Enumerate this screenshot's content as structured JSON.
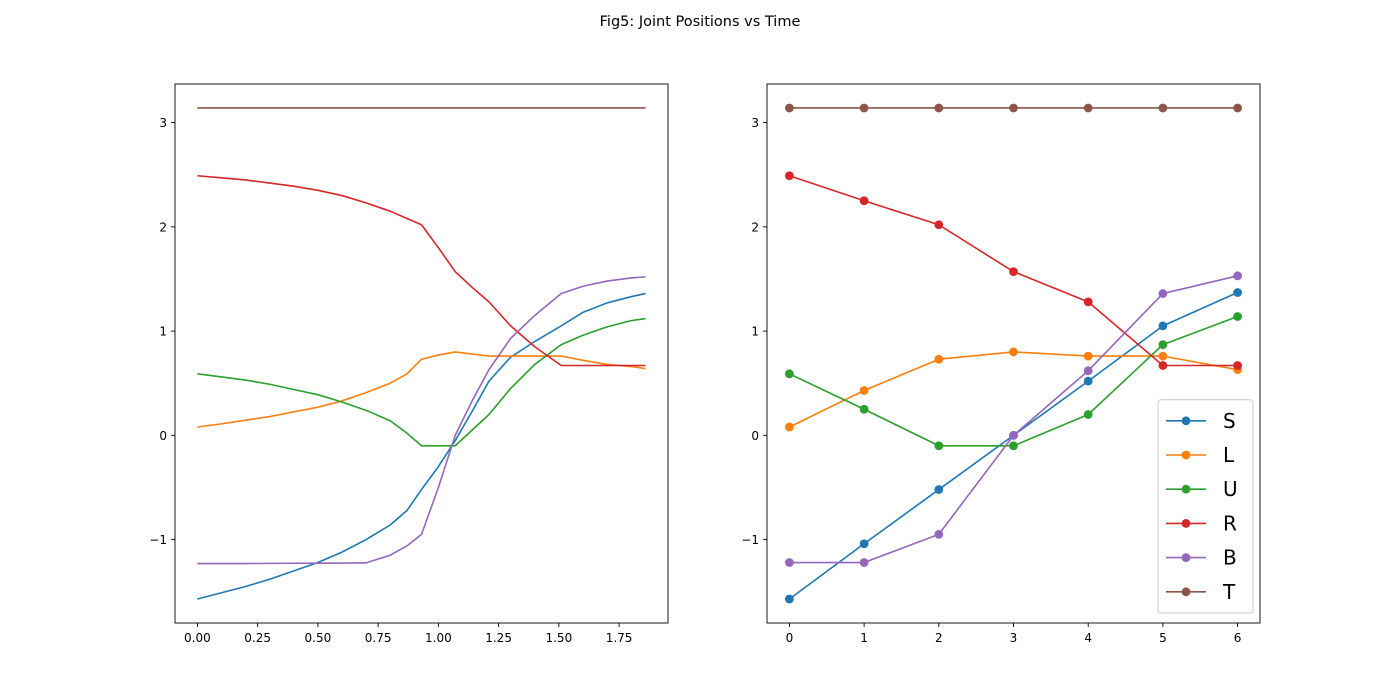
{
  "figure": {
    "title": "Fig5: Joint Positions vs Time"
  },
  "chart_data": [
    {
      "type": "line",
      "title": "",
      "xlabel": "",
      "ylabel": "",
      "xlim": [
        -0.093,
        1.953
      ],
      "ylim": [
        -1.8,
        3.37
      ],
      "xticks": [
        0.0,
        0.25,
        0.5,
        0.75,
        1.0,
        1.25,
        1.5,
        1.75
      ],
      "xtick_labels": [
        "0.00",
        "0.25",
        "0.50",
        "0.75",
        "1.00",
        "1.25",
        "1.50",
        "1.75"
      ],
      "yticks": [
        -1,
        0,
        1,
        2,
        3
      ],
      "ytick_labels": [
        "−1",
        "0",
        "1",
        "2",
        "3"
      ],
      "grid": false,
      "markers": false,
      "series": [
        {
          "color": "#1f77b4",
          "x": [
            0,
            0.1,
            0.2,
            0.3,
            0.4,
            0.5,
            0.6,
            0.7,
            0.8,
            0.87,
            0.93,
            1.0,
            1.07,
            1.14,
            1.21,
            1.3,
            1.4,
            1.51,
            1.6,
            1.7,
            1.8,
            1.86
          ],
          "y": [
            -1.57,
            -1.51,
            -1.45,
            -1.38,
            -1.3,
            -1.22,
            -1.12,
            -1.0,
            -0.86,
            -0.72,
            -0.52,
            -0.3,
            -0.05,
            0.23,
            0.52,
            0.75,
            0.9,
            1.05,
            1.18,
            1.27,
            1.33,
            1.36
          ]
        },
        {
          "color": "#ff7f0e",
          "x": [
            0,
            0.1,
            0.2,
            0.3,
            0.4,
            0.5,
            0.6,
            0.7,
            0.8,
            0.87,
            0.93,
            1.0,
            1.07,
            1.21,
            1.3,
            1.4,
            1.51,
            1.6,
            1.7,
            1.8,
            1.86
          ],
          "y": [
            0.08,
            0.11,
            0.145,
            0.18,
            0.225,
            0.27,
            0.33,
            0.41,
            0.5,
            0.59,
            0.73,
            0.77,
            0.8,
            0.76,
            0.76,
            0.76,
            0.76,
            0.72,
            0.68,
            0.66,
            0.64
          ]
        },
        {
          "color": "#2ca02c",
          "x": [
            0,
            0.1,
            0.2,
            0.3,
            0.4,
            0.5,
            0.6,
            0.7,
            0.8,
            0.87,
            0.93,
            1.0,
            1.07,
            1.14,
            1.21,
            1.3,
            1.4,
            1.51,
            1.6,
            1.7,
            1.8,
            1.86
          ],
          "y": [
            0.59,
            0.56,
            0.53,
            0.49,
            0.44,
            0.39,
            0.32,
            0.24,
            0.14,
            0.02,
            -0.1,
            -0.1,
            -0.1,
            0.05,
            0.2,
            0.45,
            0.68,
            0.87,
            0.96,
            1.04,
            1.1,
            1.12
          ]
        },
        {
          "color": "#d62728",
          "x": [
            0,
            0.1,
            0.2,
            0.3,
            0.4,
            0.5,
            0.6,
            0.7,
            0.8,
            0.87,
            0.93,
            1.0,
            1.07,
            1.14,
            1.21,
            1.3,
            1.4,
            1.51,
            1.6,
            1.7,
            1.8,
            1.86
          ],
          "y": [
            2.49,
            2.47,
            2.45,
            2.42,
            2.39,
            2.35,
            2.3,
            2.23,
            2.15,
            2.08,
            2.02,
            1.8,
            1.57,
            1.42,
            1.28,
            1.05,
            0.85,
            0.67,
            0.67,
            0.67,
            0.67,
            0.67
          ]
        },
        {
          "color": "#9467bd",
          "x": [
            0,
            0.1,
            0.2,
            0.3,
            0.4,
            0.5,
            0.6,
            0.7,
            0.8,
            0.87,
            0.93,
            1.0,
            1.07,
            1.14,
            1.21,
            1.3,
            1.4,
            1.51,
            1.6,
            1.7,
            1.8,
            1.86
          ],
          "y": [
            -1.23,
            -1.23,
            -1.23,
            -1.228,
            -1.227,
            -1.226,
            -1.225,
            -1.223,
            -1.15,
            -1.06,
            -0.95,
            -0.5,
            0.0,
            0.33,
            0.63,
            0.93,
            1.15,
            1.36,
            1.43,
            1.48,
            1.51,
            1.52
          ]
        },
        {
          "color": "#8c564b",
          "x": [
            0,
            1.86
          ],
          "y": [
            3.14,
            3.14
          ]
        }
      ]
    },
    {
      "type": "line",
      "title": "",
      "xlabel": "",
      "ylabel": "",
      "xlim": [
        -0.3,
        6.3
      ],
      "ylim": [
        -1.8,
        3.37
      ],
      "xticks": [
        0,
        1,
        2,
        3,
        4,
        5,
        6
      ],
      "xtick_labels": [
        "0",
        "1",
        "2",
        "3",
        "4",
        "5",
        "6"
      ],
      "yticks": [
        -1,
        0,
        1,
        2,
        3
      ],
      "ytick_labels": [
        "−1",
        "0",
        "1",
        "2",
        "3"
      ],
      "grid": false,
      "markers": true,
      "legend_position": "lower-right",
      "x": [
        0,
        1,
        2,
        3,
        4,
        5,
        6
      ],
      "series": [
        {
          "name": "S",
          "color": "#1f77b4",
          "values": [
            -1.57,
            -1.04,
            -0.52,
            0.0,
            0.52,
            1.05,
            1.37
          ]
        },
        {
          "name": "L",
          "color": "#ff7f0e",
          "values": [
            0.08,
            0.43,
            0.73,
            0.8,
            0.76,
            0.76,
            0.63
          ]
        },
        {
          "name": "U",
          "color": "#2ca02c",
          "values": [
            0.59,
            0.25,
            -0.1,
            -0.1,
            0.2,
            0.87,
            1.14
          ]
        },
        {
          "name": "R",
          "color": "#d62728",
          "values": [
            2.49,
            2.25,
            2.02,
            1.57,
            1.28,
            0.67,
            0.67
          ]
        },
        {
          "name": "B",
          "color": "#9467bd",
          "values": [
            -1.22,
            -1.22,
            -0.95,
            0.0,
            0.62,
            1.36,
            1.53
          ]
        },
        {
          "name": "T",
          "color": "#8c564b",
          "values": [
            3.14,
            3.14,
            3.14,
            3.14,
            3.14,
            3.14,
            3.14
          ]
        }
      ]
    }
  ]
}
